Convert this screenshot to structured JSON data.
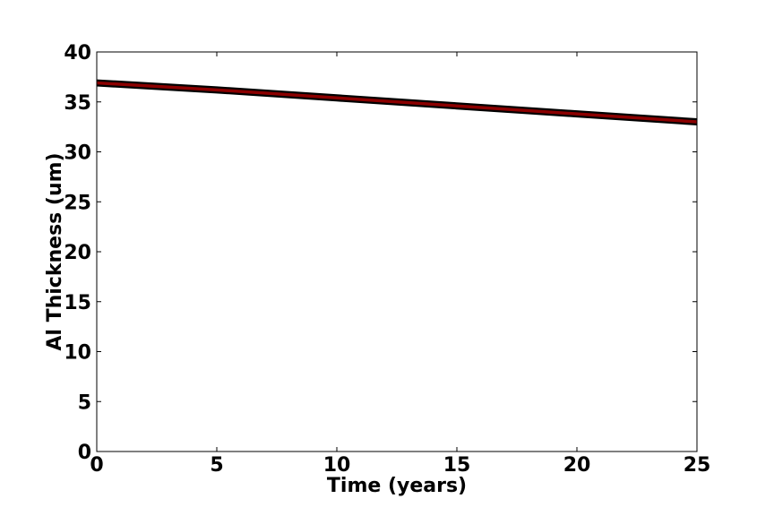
{
  "chart_data": {
    "type": "line",
    "title": "",
    "xlabel": "Time (years)",
    "ylabel": "Al Thickness (um)",
    "xlim": [
      0,
      25
    ],
    "ylim": [
      0,
      40
    ],
    "xticks": [
      0,
      5,
      10,
      15,
      20,
      25
    ],
    "yticks": [
      0,
      5,
      10,
      15,
      20,
      25,
      30,
      35,
      40
    ],
    "xtick_labels": [
      "0",
      "5",
      "10",
      "15",
      "20",
      "25"
    ],
    "ytick_labels": [
      "0",
      "5",
      "10",
      "15",
      "20",
      "25",
      "30",
      "35",
      "40"
    ],
    "grid": false,
    "legend": "none",
    "series": [
      {
        "x": [
          0,
          5,
          10,
          15,
          20,
          25
        ],
        "values": [
          36.9,
          36.2,
          35.4,
          34.6,
          33.8,
          33.0
        ],
        "color": "#8b0000",
        "edge_color": "#000000"
      }
    ]
  }
}
